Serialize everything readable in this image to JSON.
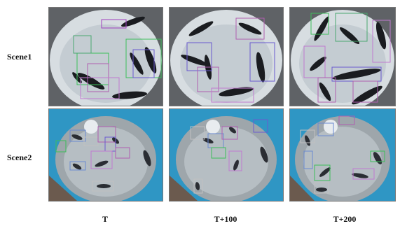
{
  "rows": [
    "Scene1",
    "Scene2"
  ],
  "columns": [
    "T",
    "T+100",
    "T+200"
  ]
}
